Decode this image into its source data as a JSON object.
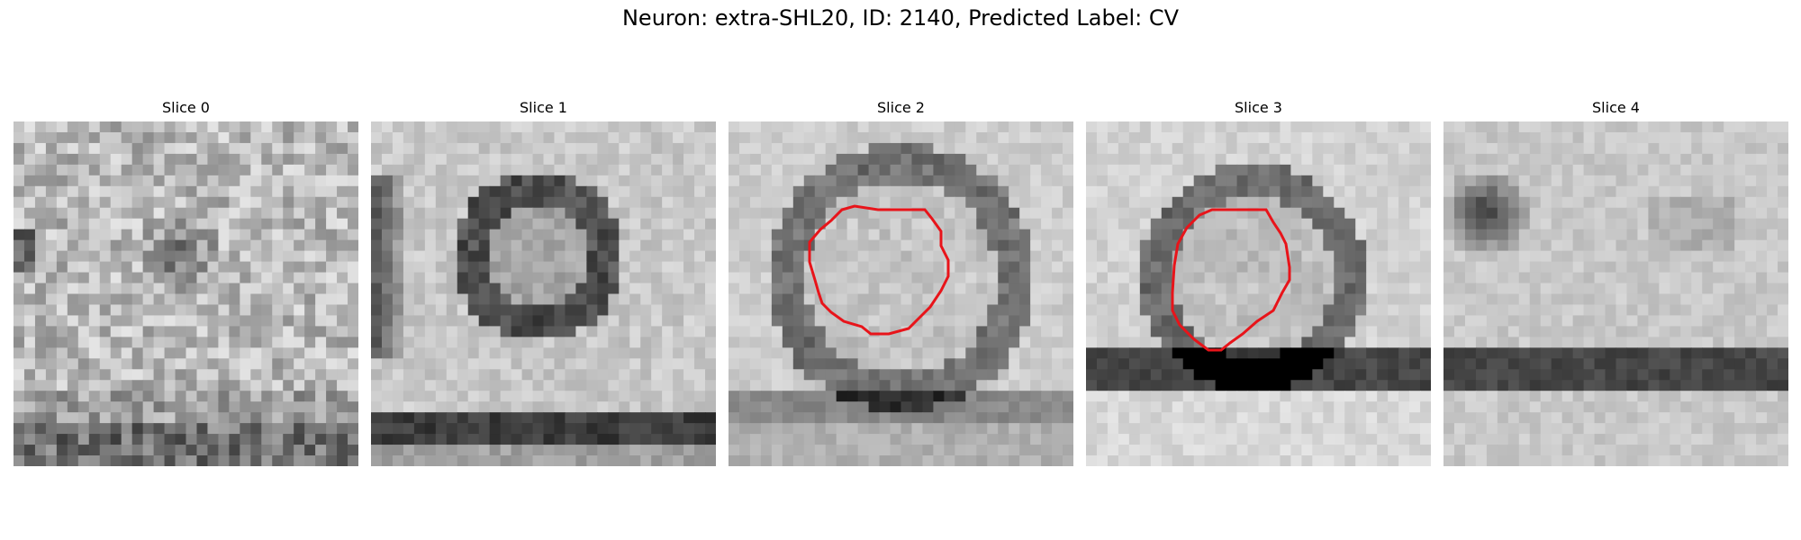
{
  "figure": {
    "title": "Neuron: extra-SHL20, ID: 2140, Predicted Label: CV"
  },
  "panels": [
    {
      "title": "Slice 0",
      "has_contour": false
    },
    {
      "title": "Slice 1",
      "has_contour": false
    },
    {
      "title": "Slice 2",
      "has_contour": true
    },
    {
      "title": "Slice 3",
      "has_contour": true
    },
    {
      "title": "Slice 4",
      "has_contour": false
    }
  ],
  "colors": {
    "contour": "#e8141a",
    "background": "#ffffff"
  }
}
